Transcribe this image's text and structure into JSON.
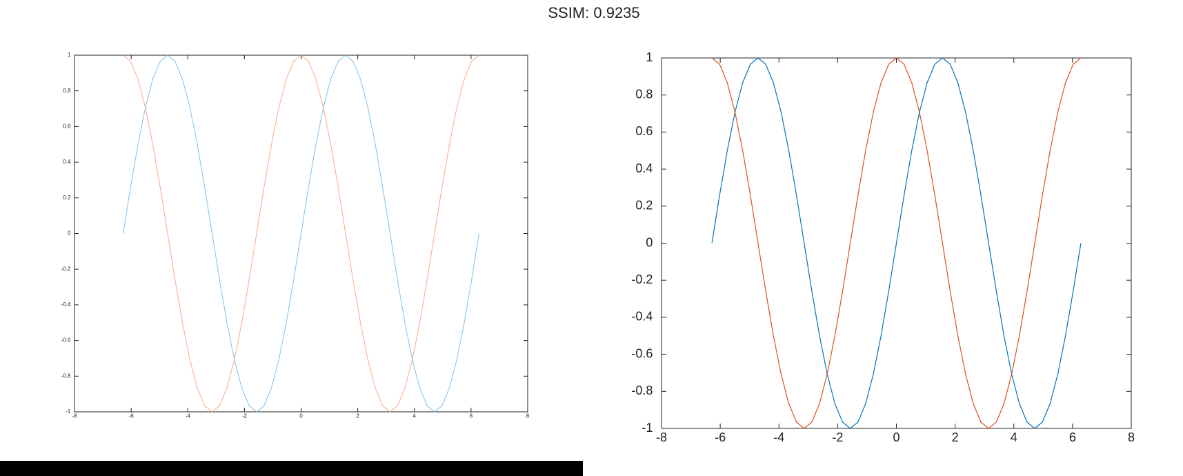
{
  "title": "SSIM: 0.9235",
  "chart_data": [
    {
      "type": "line",
      "x": [
        -6.2832,
        -6.0214,
        -5.7596,
        -5.4978,
        -5.236,
        -4.9742,
        -4.7124,
        -4.4506,
        -4.1888,
        -3.927,
        -3.6652,
        -3.4034,
        -3.1416,
        -2.8798,
        -2.618,
        -2.3562,
        -2.0944,
        -1.8326,
        -1.5708,
        -1.309,
        -1.0472,
        -0.7854,
        -0.5236,
        -0.2618,
        0,
        0.2618,
        0.5236,
        0.7854,
        1.0472,
        1.309,
        1.5708,
        1.8326,
        2.0944,
        2.3562,
        2.618,
        2.8798,
        3.1416,
        3.4034,
        3.6652,
        3.927,
        4.1888,
        4.4506,
        4.7124,
        4.9742,
        5.236,
        5.4978,
        5.7596,
        6.0214,
        6.2832
      ],
      "series": [
        {
          "color": "#7fbfe8",
          "values": [
            0,
            0.2588,
            0.5,
            0.7071,
            0.866,
            0.9659,
            1,
            0.9659,
            0.866,
            0.7071,
            0.5,
            0.2588,
            0,
            -0.2588,
            -0.5,
            -0.7071,
            -0.866,
            -0.9659,
            -1,
            -0.9659,
            -0.866,
            -0.7071,
            -0.5,
            -0.2588,
            0,
            0.2588,
            0.5,
            0.7071,
            0.866,
            0.9659,
            1,
            0.9659,
            0.866,
            0.7071,
            0.5,
            0.2588,
            0,
            -0.2588,
            -0.5,
            -0.7071,
            -0.866,
            -0.9659,
            -1,
            -0.9659,
            -0.866,
            -0.7071,
            -0.5,
            -0.2588,
            0
          ]
        },
        {
          "color": "#f6a98c",
          "values": [
            1,
            0.9659,
            0.866,
            0.7071,
            0.5,
            0.2588,
            0,
            -0.2588,
            -0.5,
            -0.7071,
            -0.866,
            -0.9659,
            -1,
            -0.9659,
            -0.866,
            -0.7071,
            -0.5,
            -0.2588,
            0,
            0.2588,
            0.5,
            0.7071,
            0.866,
            0.9659,
            1,
            0.9659,
            0.866,
            0.7071,
            0.5,
            0.2588,
            0,
            -0.2588,
            -0.5,
            -0.7071,
            -0.866,
            -0.9659,
            -1,
            -0.9659,
            -0.866,
            -0.7071,
            -0.5,
            -0.2588,
            0,
            0.2588,
            0.5,
            0.7071,
            0.866,
            0.9659,
            1
          ]
        }
      ],
      "xlim": [
        -8,
        8
      ],
      "xticks": [
        -8,
        -6,
        -4,
        -2,
        0,
        2,
        4,
        6,
        8
      ],
      "ylim": [
        -1,
        1
      ],
      "yticks": [
        -1,
        -0.8,
        -0.6,
        -0.4,
        -0.2,
        0,
        0.2,
        0.4,
        0.6,
        0.8,
        1
      ]
    },
    {
      "type": "line",
      "x": [
        -6.2832,
        -6.0214,
        -5.7596,
        -5.4978,
        -5.236,
        -4.9742,
        -4.7124,
        -4.4506,
        -4.1888,
        -3.927,
        -3.6652,
        -3.4034,
        -3.1416,
        -2.8798,
        -2.618,
        -2.3562,
        -2.0944,
        -1.8326,
        -1.5708,
        -1.309,
        -1.0472,
        -0.7854,
        -0.5236,
        -0.2618,
        0,
        0.2618,
        0.5236,
        0.7854,
        1.0472,
        1.309,
        1.5708,
        1.8326,
        2.0944,
        2.3562,
        2.618,
        2.8798,
        3.1416,
        3.4034,
        3.6652,
        3.927,
        4.1888,
        4.4506,
        4.7124,
        4.9742,
        5.236,
        5.4978,
        5.7596,
        6.0214,
        6.2832
      ],
      "series": [
        {
          "color": "#0072bd",
          "values": [
            0,
            0.2588,
            0.5,
            0.7071,
            0.866,
            0.9659,
            1,
            0.9659,
            0.866,
            0.7071,
            0.5,
            0.2588,
            0,
            -0.2588,
            -0.5,
            -0.7071,
            -0.866,
            -0.9659,
            -1,
            -0.9659,
            -0.866,
            -0.7071,
            -0.5,
            -0.2588,
            0,
            0.2588,
            0.5,
            0.7071,
            0.866,
            0.9659,
            1,
            0.9659,
            0.866,
            0.7071,
            0.5,
            0.2588,
            0,
            -0.2588,
            -0.5,
            -0.7071,
            -0.866,
            -0.9659,
            -1,
            -0.9659,
            -0.866,
            -0.7071,
            -0.5,
            -0.2588,
            0
          ]
        },
        {
          "color": "#d95319",
          "values": [
            1,
            0.9659,
            0.866,
            0.7071,
            0.5,
            0.2588,
            0,
            -0.2588,
            -0.5,
            -0.7071,
            -0.866,
            -0.9659,
            -1,
            -0.9659,
            -0.866,
            -0.7071,
            -0.5,
            -0.2588,
            0,
            0.2588,
            0.5,
            0.7071,
            0.866,
            0.9659,
            1,
            0.9659,
            0.866,
            0.7071,
            0.5,
            0.2588,
            0,
            -0.2588,
            -0.5,
            -0.7071,
            -0.866,
            -0.9659,
            -1,
            -0.9659,
            -0.866,
            -0.7071,
            -0.5,
            -0.2588,
            0,
            0.2588,
            0.5,
            0.7071,
            0.866,
            0.9659,
            1
          ]
        }
      ],
      "xlim": [
        -8,
        8
      ],
      "xticks": [
        -8,
        -6,
        -4,
        -2,
        0,
        2,
        4,
        6,
        8
      ],
      "ylim": [
        -1,
        1
      ],
      "yticks": [
        -1,
        -0.8,
        -0.6,
        -0.4,
        -0.2,
        0,
        0.2,
        0.4,
        0.6,
        0.8,
        1
      ]
    }
  ]
}
